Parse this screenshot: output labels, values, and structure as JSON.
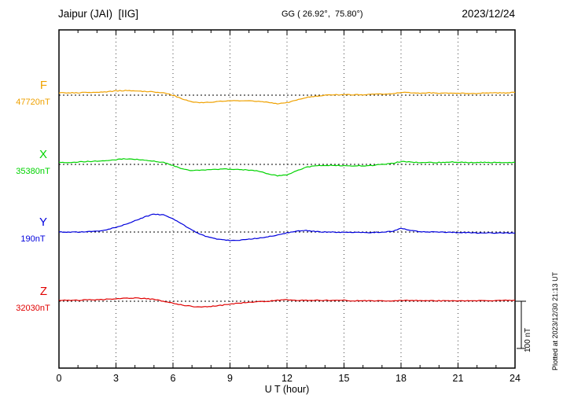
{
  "header": {
    "station": "Jaipur (JAI)  [IIG]",
    "coords": "GG ( 26.92°,  75.80°)",
    "date": "2023/12/24"
  },
  "footer": {
    "plotted_note": "Plotted at 2023/12/30 21:13 UT"
  },
  "chart_data": {
    "type": "line",
    "title": "Jaipur (JAI) [IIG] magnetogram for 2023/12/24",
    "xlabel": "U T (hour)",
    "x_range": [
      0,
      24
    ],
    "x_ticks": [
      0,
      3,
      6,
      9,
      12,
      15,
      18,
      21,
      24
    ],
    "units": "nT",
    "grid": "dotted vertical at 3-hour intervals, dotted horizontal baseline per component",
    "scale_bar": {
      "label": "100 nT",
      "value_nT": 100
    },
    "sample_interval_hours": 0.5,
    "series": [
      {
        "name": "F",
        "baseline_label": "47720nT",
        "baseline_value_nT": 47720,
        "color": "#efa100",
        "values": [
          5,
          5,
          5,
          6,
          6,
          7,
          9,
          10,
          9,
          8,
          7,
          5,
          0,
          -8,
          -14,
          -16,
          -15,
          -13,
          -12,
          -12,
          -12,
          -13,
          -15,
          -18,
          -16,
          -10,
          -5,
          -2,
          0,
          1,
          1,
          1,
          1,
          2,
          2,
          3,
          6,
          5,
          4,
          5,
          4,
          4,
          4,
          4,
          4,
          5,
          5,
          5,
          6
        ]
      },
      {
        "name": "X",
        "baseline_label": "35380nT",
        "baseline_value_nT": 35380,
        "color": "#00d300",
        "values": [
          4,
          4,
          5,
          6,
          7,
          8,
          10,
          12,
          11,
          9,
          7,
          4,
          -2,
          -10,
          -13,
          -12,
          -11,
          -10,
          -10,
          -11,
          -12,
          -14,
          -20,
          -24,
          -22,
          -14,
          -6,
          -3,
          -2,
          -2,
          -3,
          -3,
          -3,
          -2,
          0,
          2,
          6,
          5,
          4,
          4,
          4,
          5,
          5,
          4,
          4,
          4,
          4,
          4,
          4
        ]
      },
      {
        "name": "Y",
        "baseline_label": "190nT",
        "baseline_value_nT": 190,
        "color": "#0000dd",
        "values": [
          0,
          0,
          0,
          1,
          2,
          5,
          10,
          16,
          24,
          32,
          38,
          36,
          28,
          16,
          4,
          -6,
          -12,
          -16,
          -18,
          -17,
          -15,
          -13,
          -10,
          -6,
          -2,
          2,
          3,
          1,
          0,
          0,
          -1,
          -1,
          -1,
          -1,
          0,
          1,
          8,
          3,
          1,
          0,
          0,
          -1,
          -1,
          -1,
          -2,
          -2,
          -2,
          -2,
          -2
        ]
      },
      {
        "name": "Z",
        "baseline_label": "32030nT",
        "baseline_value_nT": 32030,
        "color": "#e00000",
        "values": [
          2,
          2,
          2,
          3,
          3,
          4,
          5,
          6,
          7,
          6,
          4,
          0,
          -4,
          -8,
          -11,
          -12,
          -11,
          -9,
          -6,
          -4,
          -2,
          -1,
          0,
          2,
          3,
          2,
          2,
          2,
          2,
          2,
          2,
          1,
          1,
          1,
          1,
          1,
          2,
          2,
          1,
          1,
          1,
          1,
          1,
          1,
          1,
          1,
          1,
          2,
          2
        ]
      }
    ]
  }
}
